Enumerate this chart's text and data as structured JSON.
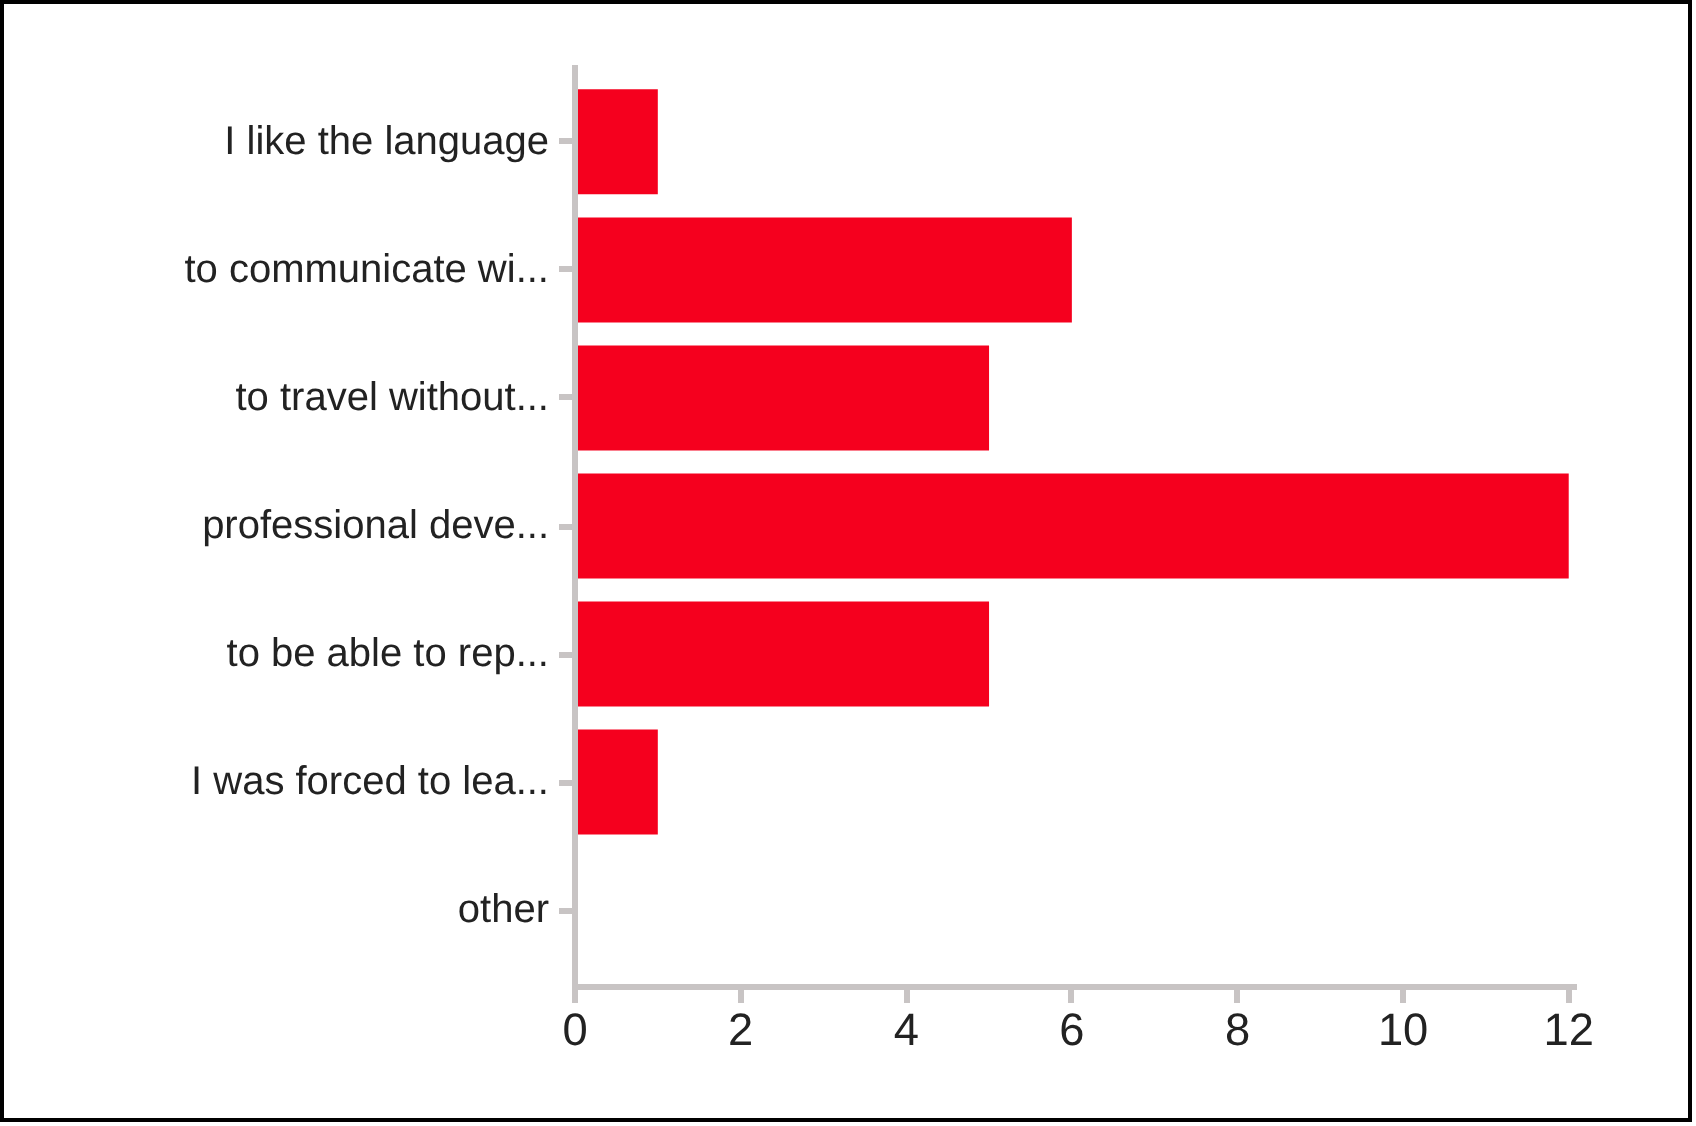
{
  "chart_data": {
    "type": "bar",
    "orientation": "horizontal",
    "categories": [
      "I like the language",
      "to communicate wi...",
      "to travel without...",
      "professional deve...",
      "to be able to rep...",
      "I was forced to lea...",
      "other"
    ],
    "values": [
      1,
      6,
      5,
      12,
      5,
      1,
      0
    ],
    "color": "#f5001e",
    "xlim": [
      0,
      12.1
    ],
    "xticks": [
      0,
      2,
      4,
      6,
      8,
      10,
      12
    ],
    "grid": false
  }
}
